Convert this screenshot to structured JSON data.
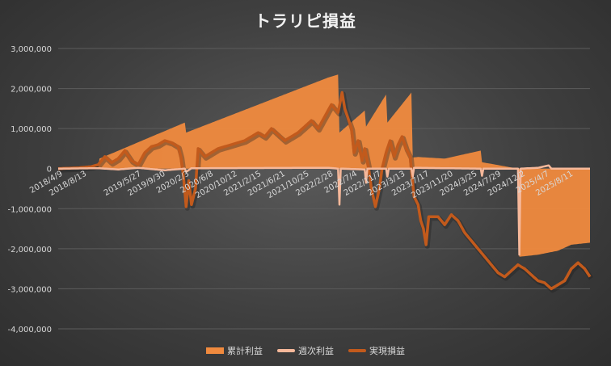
{
  "chart_data": {
    "type": "area",
    "title": "トラリピ損益",
    "ylim": [
      -4000000,
      3000000
    ],
    "y_ticks": [
      "3,000,000",
      "2,000,000",
      "1,000,000",
      "0",
      "-1,000,000",
      "-2,000,000",
      "-3,000,000",
      "-4,000,000"
    ],
    "y_tick_values": [
      3000000,
      2000000,
      1000000,
      0,
      -1000000,
      -2000000,
      -3000000,
      -4000000
    ],
    "x_ticks": [
      "2018/4/9",
      "2018/8/13",
      "2019/5/27",
      "2019/9/30",
      "2020/2/3",
      "2020/6/8",
      "2020/10/12",
      "2021/2/15",
      "2021/6/21",
      "2021/10/25",
      "2022/2/28",
      "2022/7/4",
      "2022/11/7",
      "2023/3/13",
      "2023/7/17",
      "2023/11/20",
      "2024/3/25",
      "2024/7/29",
      "2024/12/2",
      "2025/4/7",
      "2025/8/11"
    ],
    "x_tick_index": [
      0,
      18,
      59,
      77,
      95,
      113,
      131,
      149,
      167,
      185,
      203,
      221,
      239,
      257,
      275,
      293,
      311,
      329,
      347,
      365,
      383
    ],
    "n_points": 400,
    "legend_position": "bottom",
    "grid": true,
    "series": [
      {
        "name": "累計利益",
        "kind": "area",
        "color": "#f08a3e",
        "points": [
          [
            0,
            0
          ],
          [
            30,
            0
          ],
          [
            31,
            250000
          ],
          [
            95,
            1150000
          ],
          [
            96,
            900000
          ],
          [
            203,
            2280000
          ],
          [
            210,
            2350000
          ],
          [
            211,
            900000
          ],
          [
            230,
            1450000
          ],
          [
            231,
            1050000
          ],
          [
            246,
            1850000
          ],
          [
            247,
            1150000
          ],
          [
            265,
            1900000
          ],
          [
            266,
            280000
          ],
          [
            270,
            290000
          ],
          [
            290,
            250000
          ],
          [
            317,
            450000
          ],
          [
            318,
            160000
          ],
          [
            345,
            0
          ],
          [
            346,
            -2200000
          ],
          [
            360,
            -2150000
          ],
          [
            375,
            -2050000
          ],
          [
            385,
            -1900000
          ],
          [
            399,
            -1850000
          ]
        ]
      },
      {
        "name": "週次利益",
        "kind": "line",
        "color": "#f6b89a",
        "points": [
          [
            0,
            0
          ],
          [
            30,
            10000
          ],
          [
            45,
            -20000
          ],
          [
            60,
            20000
          ],
          [
            80,
            -40000
          ],
          [
            95,
            0
          ],
          [
            96,
            -80000
          ],
          [
            100,
            10000
          ],
          [
            150,
            15000
          ],
          [
            203,
            20000
          ],
          [
            210,
            0
          ],
          [
            211,
            -900000
          ],
          [
            212,
            0
          ],
          [
            230,
            -20000
          ],
          [
            231,
            -350000
          ],
          [
            232,
            0
          ],
          [
            246,
            0
          ],
          [
            247,
            -200000
          ],
          [
            248,
            0
          ],
          [
            265,
            0
          ],
          [
            266,
            -200000
          ],
          [
            267,
            20000
          ],
          [
            290,
            10000
          ],
          [
            317,
            0
          ],
          [
            318,
            -180000
          ],
          [
            319,
            0
          ],
          [
            345,
            0
          ],
          [
            346,
            -2150000
          ],
          [
            347,
            0
          ],
          [
            360,
            20000
          ],
          [
            368,
            80000
          ],
          [
            370,
            0
          ],
          [
            399,
            0
          ]
        ]
      },
      {
        "name": "実現損益",
        "kind": "line",
        "color": "#c25a1c",
        "points": [
          [
            0,
            0
          ],
          [
            15,
            20000
          ],
          [
            25,
            50000
          ],
          [
            30,
            100000
          ],
          [
            35,
            300000
          ],
          [
            40,
            150000
          ],
          [
            45,
            250000
          ],
          [
            50,
            450000
          ],
          [
            55,
            200000
          ],
          [
            60,
            100000
          ],
          [
            65,
            400000
          ],
          [
            70,
            550000
          ],
          [
            75,
            600000
          ],
          [
            80,
            700000
          ],
          [
            85,
            650000
          ],
          [
            90,
            550000
          ],
          [
            92,
            300000
          ],
          [
            94,
            -200000
          ],
          [
            96,
            -950000
          ],
          [
            98,
            -300000
          ],
          [
            100,
            -900000
          ],
          [
            103,
            -500000
          ],
          [
            105,
            500000
          ],
          [
            110,
            300000
          ],
          [
            115,
            400000
          ],
          [
            120,
            500000
          ],
          [
            130,
            600000
          ],
          [
            140,
            700000
          ],
          [
            150,
            900000
          ],
          [
            155,
            800000
          ],
          [
            160,
            1000000
          ],
          [
            170,
            700000
          ],
          [
            180,
            900000
          ],
          [
            190,
            1200000
          ],
          [
            195,
            1000000
          ],
          [
            200,
            1300000
          ],
          [
            205,
            1600000
          ],
          [
            210,
            1400000
          ],
          [
            213,
            1900000
          ],
          [
            215,
            1500000
          ],
          [
            220,
            1000000
          ],
          [
            222,
            400000
          ],
          [
            225,
            700000
          ],
          [
            228,
            200000
          ],
          [
            230,
            500000
          ],
          [
            233,
            0
          ],
          [
            235,
            -500000
          ],
          [
            238,
            -950000
          ],
          [
            241,
            -500000
          ],
          [
            243,
            0
          ],
          [
            246,
            400000
          ],
          [
            249,
            700000
          ],
          [
            252,
            300000
          ],
          [
            255,
            600000
          ],
          [
            258,
            800000
          ],
          [
            261,
            500000
          ],
          [
            264,
            300000
          ],
          [
            267,
            -700000
          ],
          [
            270,
            -900000
          ],
          [
            272,
            -1300000
          ],
          [
            274,
            -1500000
          ],
          [
            276,
            -1900000
          ],
          [
            278,
            -1200000
          ],
          [
            285,
            -1200000
          ],
          [
            290,
            -1400000
          ],
          [
            295,
            -1150000
          ],
          [
            300,
            -1300000
          ],
          [
            305,
            -1600000
          ],
          [
            310,
            -1800000
          ],
          [
            315,
            -2000000
          ],
          [
            320,
            -2200000
          ],
          [
            325,
            -2400000
          ],
          [
            330,
            -2600000
          ],
          [
            335,
            -2700000
          ],
          [
            340,
            -2550000
          ],
          [
            345,
            -2400000
          ],
          [
            350,
            -2500000
          ],
          [
            355,
            -2650000
          ],
          [
            360,
            -2800000
          ],
          [
            365,
            -2850000
          ],
          [
            370,
            -3000000
          ],
          [
            375,
            -2900000
          ],
          [
            380,
            -2800000
          ],
          [
            385,
            -2500000
          ],
          [
            390,
            -2350000
          ],
          [
            395,
            -2500000
          ],
          [
            399,
            -2700000
          ]
        ]
      }
    ]
  }
}
